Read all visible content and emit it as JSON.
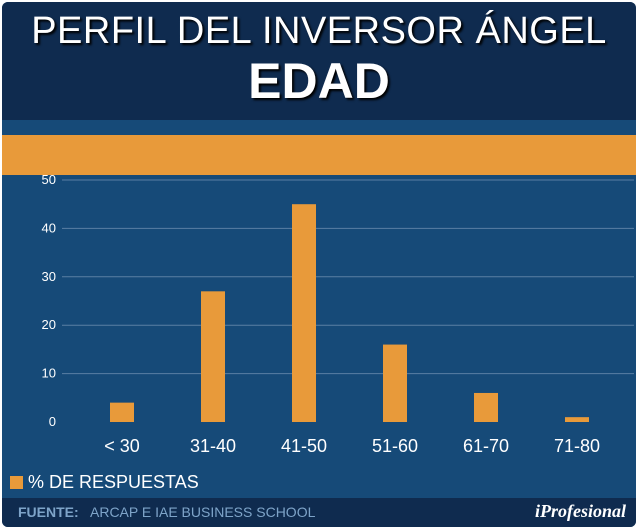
{
  "header": {
    "title_line1": "PERFIL DEL INVERSOR ÁNGEL",
    "title_line2": "EDAD"
  },
  "colors": {
    "bar": "#e89a3a",
    "background": "#164a78",
    "header": "#0f2b4f",
    "gridline": "#5a7fa3",
    "text": "#ffffff"
  },
  "footer": {
    "fuente_label": "FUENTE:",
    "fuente_text": "ARCAP E IAE BUSINESS SCHOOL",
    "brand": "iProfesional"
  },
  "chart_data": {
    "type": "bar",
    "categories": [
      "< 30",
      "31-40",
      "41-50",
      "51-60",
      "61-70",
      "71-80"
    ],
    "series": [
      {
        "name": "% DE RESPUESTAS",
        "values": [
          4,
          27,
          45,
          16,
          6,
          1
        ]
      }
    ],
    "ylim": [
      0,
      50
    ],
    "yticks": [
      0,
      10,
      20,
      30,
      40,
      50
    ],
    "grid": true,
    "legend": "bottom-left",
    "title": "",
    "xlabel": "",
    "ylabel": ""
  }
}
